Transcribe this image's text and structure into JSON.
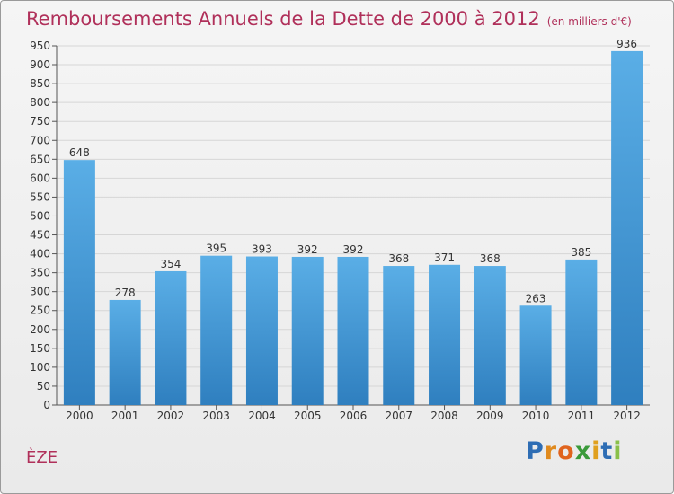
{
  "chart_data": {
    "type": "bar",
    "title": "Remboursements Annuels de la Dette de 2000 à 2012",
    "unit_note": "(en milliers d'€)",
    "categories": [
      "2000",
      "2001",
      "2002",
      "2003",
      "2004",
      "2005",
      "2006",
      "2007",
      "2008",
      "2009",
      "2010",
      "2011",
      "2012"
    ],
    "values": [
      648,
      278,
      354,
      395,
      393,
      392,
      392,
      368,
      371,
      368,
      263,
      385,
      936
    ],
    "ylim": [
      0,
      950
    ],
    "ytick_step": 50,
    "grid": true,
    "bar_color_top": "#5aaee6",
    "bar_color_bottom": "#2f7fbf"
  },
  "footer": {
    "town": "ÈZE",
    "logo_letters": [
      "P",
      "r",
      "o",
      "x",
      "i",
      "t",
      "i"
    ],
    "logo_colors": [
      "#2e6db4",
      "#e08a1e",
      "#e0641e",
      "#3a9a3a",
      "#e0a01e",
      "#2e6db4",
      "#8ac04a"
    ]
  }
}
